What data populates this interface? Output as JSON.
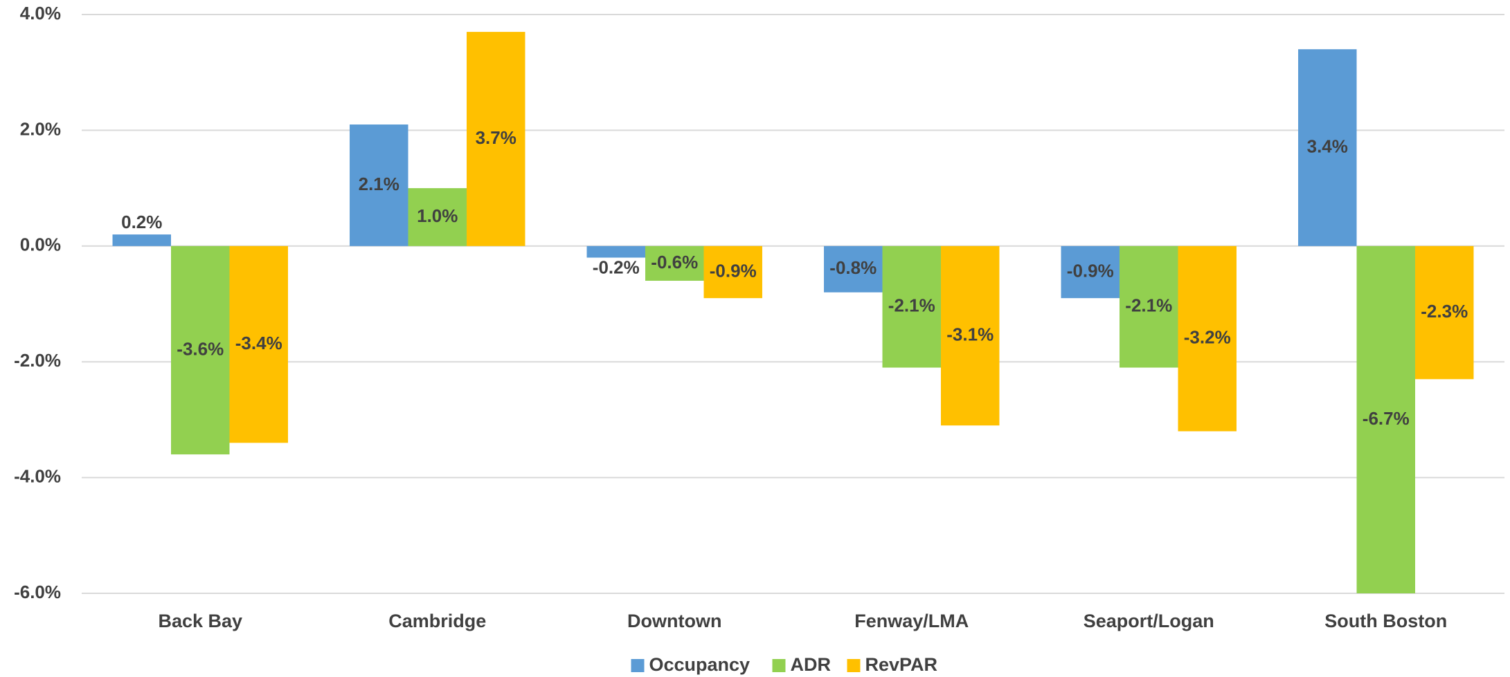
{
  "chart_data": {
    "type": "bar",
    "categories": [
      "Back Bay",
      "Cambridge",
      "Downtown",
      "Fenway/LMA",
      "Seaport/Logan",
      "South Boston"
    ],
    "series": [
      {
        "name": "Occupancy",
        "color": "#5b9bd5",
        "values": [
          0.2,
          2.1,
          -0.2,
          -0.8,
          -0.9,
          3.4
        ],
        "value_labels": [
          "0.2%",
          "2.1%",
          "-0.2%",
          "-0.8%",
          "-0.9%",
          "3.4%"
        ]
      },
      {
        "name": "ADR",
        "color": "#92d050",
        "values": [
          -3.6,
          1.0,
          -0.6,
          -2.1,
          -2.1,
          -6.7
        ],
        "value_labels": [
          "-3.6%",
          "1.0%",
          "-0.6%",
          "-2.1%",
          "-2.1%",
          "-6.7%"
        ]
      },
      {
        "name": "RevPAR",
        "color": "#ffc000",
        "values": [
          -3.4,
          3.7,
          -0.9,
          -3.1,
          -3.2,
          -2.3
        ],
        "value_labels": [
          "-3.4%",
          "3.7%",
          "-0.9%",
          "-3.1%",
          "-3.2%",
          "-2.3%"
        ]
      }
    ],
    "ylim": [
      -6,
      4
    ],
    "yticks": [
      {
        "value": -6,
        "label": "-6.0%"
      },
      {
        "value": -4,
        "label": "-4.0%"
      },
      {
        "value": -2,
        "label": "-2.0%"
      },
      {
        "value": 0,
        "label": "0.0%"
      },
      {
        "value": 2,
        "label": "2.0%"
      },
      {
        "value": 4,
        "label": "4.0%"
      }
    ],
    "grid": true,
    "legend": "bottom"
  }
}
